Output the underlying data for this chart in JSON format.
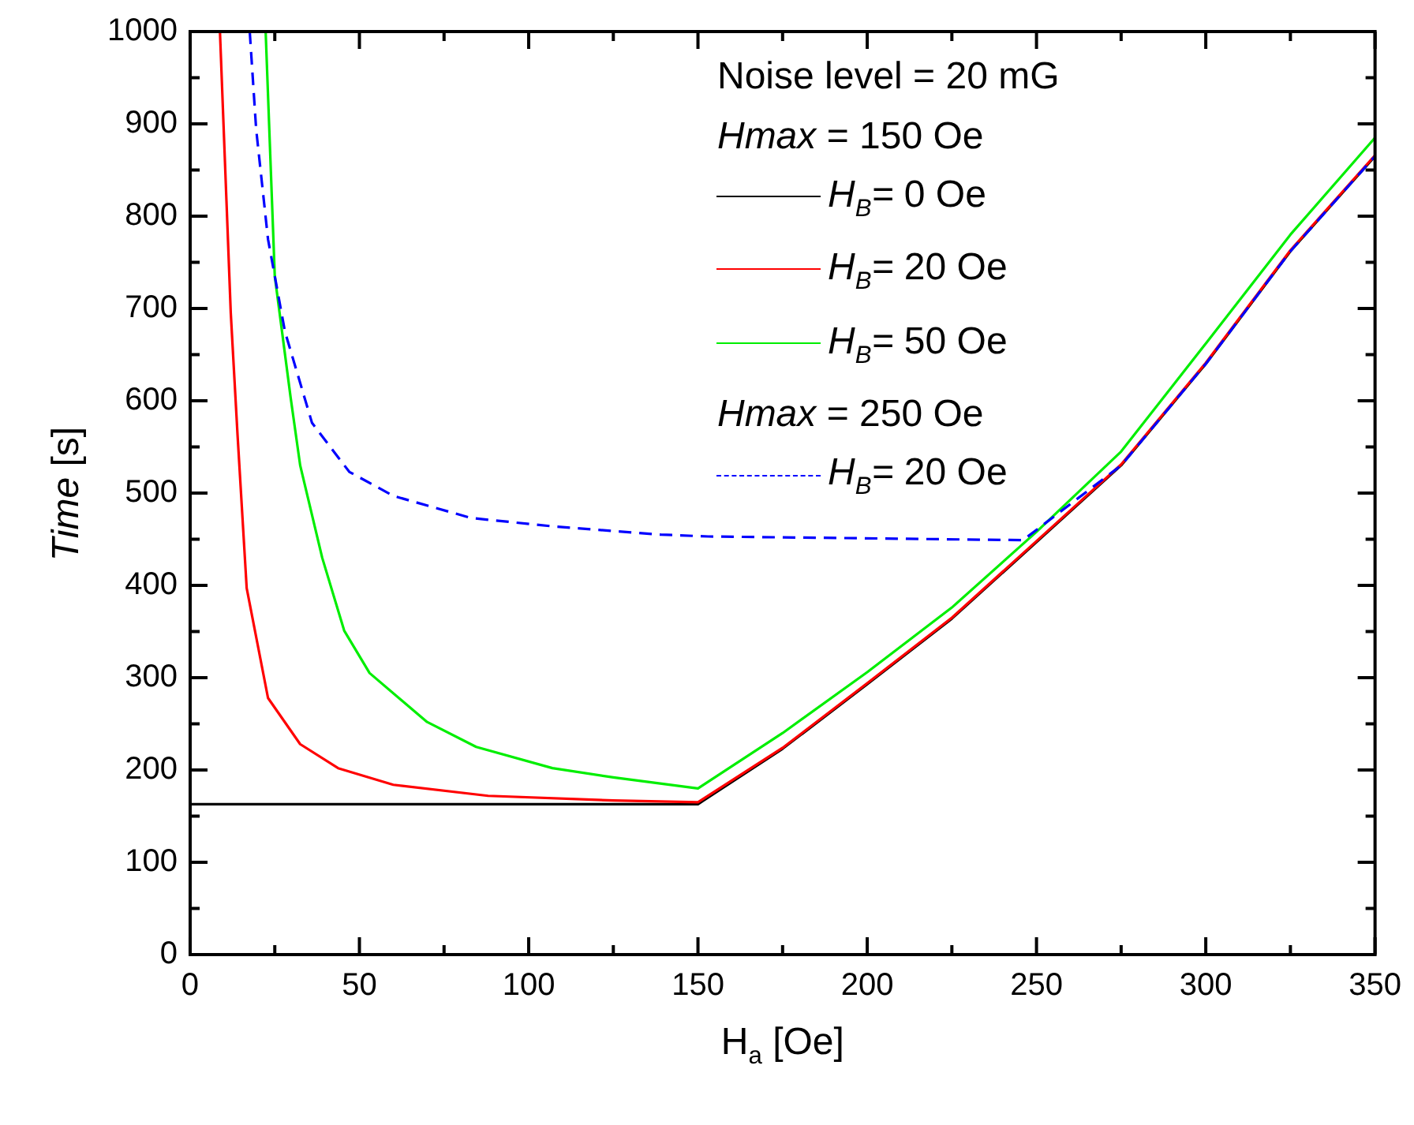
{
  "chart_data": {
    "type": "line",
    "xlabel": "H$_{a}$ [Oe]",
    "ylabel": "Time [s]",
    "legend_title": "Noise level = 20 mG",
    "annotations": [
      "Hmax = 150  Oe",
      "Hmax = 250   Oe"
    ],
    "series": [
      {
        "name": "H$_{B}$= 0   Oe",
        "color": "#000000",
        "line_style": "solid",
        "x": [
          0,
          150,
          175,
          200,
          225,
          250,
          275,
          300,
          325,
          350
        ],
        "values": [
          163,
          163,
          223,
          293,
          364,
          447,
          530,
          640,
          762,
          865
        ]
      },
      {
        "name": "H$_{B}$= 20 Oe",
        "color": "#ff0000",
        "line_style": "solid",
        "x": [
          8.8,
          12,
          14,
          16.7,
          23,
          32.5,
          43.7,
          60,
          88,
          125,
          150,
          175,
          200,
          225,
          250,
          275,
          300,
          325,
          350
        ],
        "values": [
          1000,
          695,
          563,
          397,
          278,
          228,
          202,
          184,
          172,
          167,
          165,
          224,
          294,
          365,
          448,
          531,
          641,
          763,
          866
        ]
      },
      {
        "name": "H$_{B}$= 50 Oe",
        "color": "#00ee00",
        "line_style": "solid",
        "x": [
          22.3,
          25,
          29.7,
          32.5,
          39,
          45.5,
          53,
          70,
          84.5,
          107,
          125,
          150,
          175,
          200,
          225,
          250,
          275,
          300,
          325,
          350
        ],
        "values": [
          1000,
          735,
          603,
          530,
          430,
          351,
          305,
          252,
          225,
          202,
          192,
          180,
          240,
          306,
          376,
          458,
          545,
          662,
          780,
          885
        ]
      },
      {
        "name": "H$_{B}$= 20 Oe",
        "color": "#0000ff",
        "line_style": "dashed",
        "x": [
          17.6,
          19.5,
          23,
          28,
          36,
          47,
          60,
          83,
          107,
          139,
          153,
          246,
          275,
          300,
          325,
          350
        ],
        "values": [
          1000,
          894,
          775,
          675,
          576,
          523,
          497,
          473,
          464,
          455,
          453,
          449,
          530,
          640,
          762,
          865
        ]
      }
    ],
    "xlim": [
      0,
      350
    ],
    "ylim": [
      0,
      1000
    ],
    "xticks": [
      0,
      {
        "value": 25,
        "label": null
      },
      50,
      {
        "value": 75,
        "label": null
      },
      100,
      {
        "value": 125,
        "label": null
      },
      150,
      {
        "value": 175,
        "label": null
      },
      200,
      {
        "value": 225,
        "label": null
      },
      250,
      {
        "value": 275,
        "label": null
      },
      300,
      {
        "value": 325,
        "label": null
      },
      350
    ],
    "yticks": [
      0,
      {
        "value": 50,
        "label": null
      },
      100,
      {
        "value": 150,
        "label": null
      },
      200,
      {
        "value": 250,
        "label": null
      },
      300,
      {
        "value": 350,
        "label": null
      },
      400,
      {
        "value": 450,
        "label": null
      },
      500,
      {
        "value": 550,
        "label": null
      },
      600,
      {
        "value": 650,
        "label": null
      },
      700,
      {
        "value": 750,
        "label": null
      },
      800,
      {
        "value": 850,
        "label": null
      },
      900,
      {
        "value": 950,
        "label": null
      },
      1000
    ],
    "grid": false,
    "legend": "top right",
    "marker": "none"
  }
}
